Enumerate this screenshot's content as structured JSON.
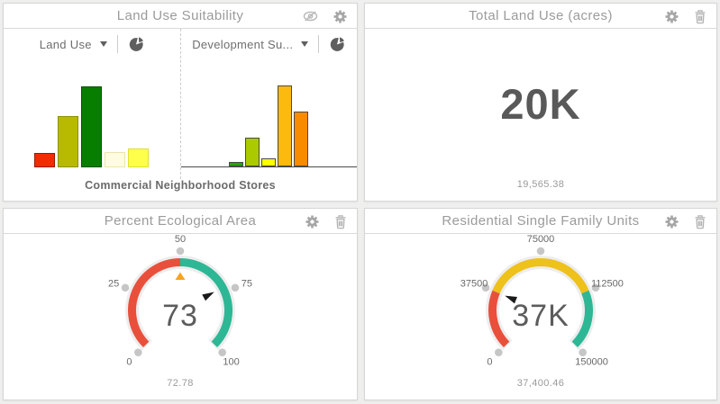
{
  "page": {
    "background": "#efefee",
    "panel_border": "#d6d6d6",
    "title_color": "#9b9b9b"
  },
  "panels": {
    "land_use_suitability": {
      "title": "Land Use Suitability",
      "header_icons": [
        "visibility-off",
        "gear"
      ],
      "caption": "Commercial Neighborhood Stores",
      "left_selector": {
        "label": "Land Use"
      },
      "right_selector": {
        "label": "Development Su..."
      }
    },
    "total_land_use": {
      "title": "Total Land Use (acres)",
      "header_icons": [
        "gear",
        "trash"
      ],
      "value_label": "20K",
      "footer_value": "19,565.38"
    },
    "percent_ecological": {
      "title": "Percent Ecological Area",
      "header_icons": [
        "gear",
        "trash"
      ],
      "footer_value": "72.78"
    },
    "residential_units": {
      "title": "Residential Single Family Units",
      "header_icons": [
        "gear",
        "trash"
      ],
      "footer_value": "37,400.46"
    }
  },
  "chart_data": [
    {
      "type": "bar",
      "panel": "Land Use Suitability",
      "series_selector": "Land Use",
      "values_relative": [
        0.15,
        0.55,
        0.87,
        0.16,
        0.2
      ],
      "colors": [
        "#f32b00",
        "#b7ba00",
        "#077e00",
        "#fffce2",
        "#feff4a"
      ],
      "border_colors": [
        "#991900",
        "#8d9000",
        "#0a5200",
        "#ece5ae",
        "#e0e034"
      ],
      "baseline": false
    },
    {
      "type": "bar",
      "panel": "Land Use Suitability",
      "series_selector": "Development Su...",
      "values_relative": [
        0.05,
        0.31,
        0.09,
        0.87,
        0.59
      ],
      "colors": [
        "#22a800",
        "#abca00",
        "#fdff00",
        "#fcba0f",
        "#f88b00"
      ],
      "border_colors": [
        "#4a4a4a",
        "#4a4a4a",
        "#4a4a4a",
        "#4a4a4a",
        "#4a4a4a"
      ],
      "baseline": true
    },
    {
      "type": "indicator",
      "title": "Total Land Use (acres)",
      "value": 19565.38,
      "display_value": "20K",
      "footer": "19,565.38"
    },
    {
      "type": "gauge",
      "title": "Percent Ecological Area",
      "min": 0,
      "max": 100,
      "ticks": [
        0,
        25,
        50,
        75,
        100
      ],
      "value": 72.78,
      "display_value": "73",
      "footer": "72.78",
      "segments": [
        {
          "from": 0,
          "to": 50,
          "color": "#e8503c"
        },
        {
          "from": 50,
          "to": 100,
          "color": "#2db795"
        }
      ],
      "threshold": {
        "value": 50,
        "color": "#f7a41d"
      },
      "needle_color": "#1a1a1a",
      "track_color": "#ededed",
      "tick_dot_color": "#c6c6c6"
    },
    {
      "type": "gauge",
      "title": "Residential Single Family Units",
      "min": 0,
      "max": 150000,
      "ticks": [
        0,
        37500,
        75000,
        112500,
        150000
      ],
      "value": 37400.46,
      "display_value": "37K",
      "footer": "37,400.46",
      "segments": [
        {
          "from": 0,
          "to": 37500,
          "color": "#e8503c"
        },
        {
          "from": 37500,
          "to": 112500,
          "color": "#eec11b"
        },
        {
          "from": 112500,
          "to": 150000,
          "color": "#2db795"
        }
      ],
      "needle_color": "#1a1a1a",
      "track_color": "#ededed",
      "tick_dot_color": "#c6c6c6"
    }
  ]
}
